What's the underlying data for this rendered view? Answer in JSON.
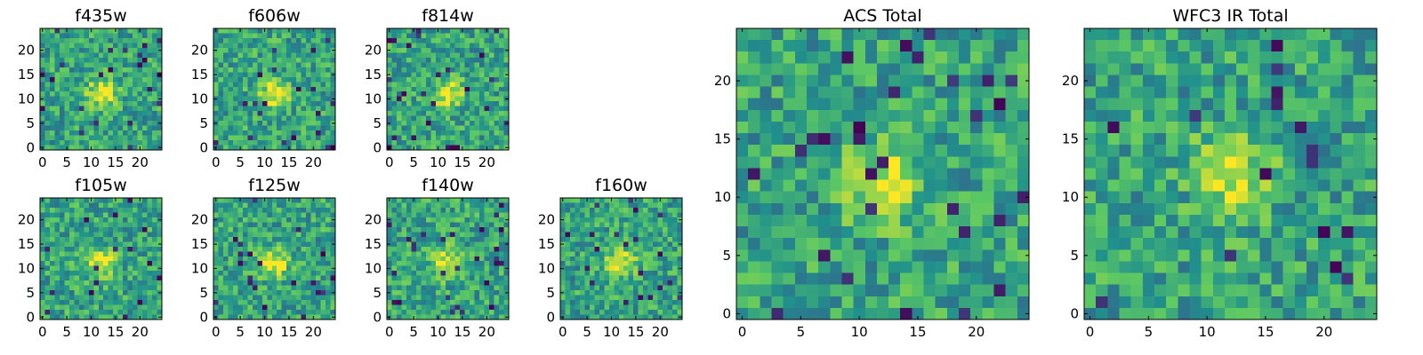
{
  "figure": {
    "colormap": "viridis",
    "colormap_stops": [
      "#440154",
      "#3b528b",
      "#21918c",
      "#5ec962",
      "#fde725"
    ]
  },
  "chart_data": [
    {
      "type": "heatmap",
      "title": "f435w",
      "grid": false,
      "pixels": 25,
      "xlim": [
        0,
        24
      ],
      "ylim": [
        0,
        24
      ],
      "xticks": [
        0,
        5,
        10,
        15,
        20
      ],
      "yticks": [
        0,
        5,
        10,
        15,
        20
      ],
      "source_peak": [
        12,
        11
      ]
    },
    {
      "type": "heatmap",
      "title": "f606w",
      "grid": false,
      "pixels": 25,
      "xlim": [
        0,
        24
      ],
      "ylim": [
        0,
        24
      ],
      "xticks": [
        0,
        5,
        10,
        15,
        20
      ],
      "yticks": [
        0,
        5,
        10,
        15,
        20
      ],
      "source_peak": [
        12,
        11
      ]
    },
    {
      "type": "heatmap",
      "title": "f814w",
      "grid": false,
      "pixels": 25,
      "xlim": [
        0,
        24
      ],
      "ylim": [
        0,
        24
      ],
      "xticks": [
        0,
        5,
        10,
        15,
        20
      ],
      "yticks": [
        0,
        5,
        10,
        15,
        20
      ],
      "source_peak": [
        12,
        11
      ]
    },
    {
      "type": "heatmap",
      "title": "f105w",
      "grid": false,
      "pixels": 25,
      "xlim": [
        0,
        24
      ],
      "ylim": [
        0,
        24
      ],
      "xticks": [
        0,
        5,
        10,
        15,
        20
      ],
      "yticks": [
        0,
        5,
        10,
        15,
        20
      ],
      "source_peak": [
        12,
        11
      ]
    },
    {
      "type": "heatmap",
      "title": "f125w",
      "grid": false,
      "pixels": 25,
      "xlim": [
        0,
        24
      ],
      "ylim": [
        0,
        24
      ],
      "xticks": [
        0,
        5,
        10,
        15,
        20
      ],
      "yticks": [
        0,
        5,
        10,
        15,
        20
      ],
      "source_peak": [
        12,
        11
      ]
    },
    {
      "type": "heatmap",
      "title": "f140w",
      "grid": false,
      "pixels": 25,
      "xlim": [
        0,
        24
      ],
      "ylim": [
        0,
        24
      ],
      "xticks": [
        0,
        5,
        10,
        15,
        20
      ],
      "yticks": [
        0,
        5,
        10,
        15,
        20
      ],
      "source_peak": [
        12,
        11
      ]
    },
    {
      "type": "heatmap",
      "title": "f160w",
      "grid": false,
      "pixels": 25,
      "xlim": [
        0,
        24
      ],
      "ylim": [
        0,
        24
      ],
      "xticks": [
        0,
        5,
        10,
        15,
        20
      ],
      "yticks": [
        0,
        5,
        10,
        15,
        20
      ],
      "source_peak": [
        12,
        11
      ]
    },
    {
      "type": "heatmap",
      "title": "ACS Total",
      "grid": false,
      "pixels": 25,
      "xlim": [
        0,
        24
      ],
      "ylim": [
        0,
        24
      ],
      "xticks": [
        0,
        5,
        10,
        15,
        20
      ],
      "yticks": [
        0,
        5,
        10,
        15,
        20
      ],
      "source_peak": [
        12,
        11
      ]
    },
    {
      "type": "heatmap",
      "title": "WFC3 IR Total",
      "grid": false,
      "pixels": 25,
      "xlim": [
        0,
        24
      ],
      "ylim": [
        0,
        24
      ],
      "xticks": [
        0,
        5,
        10,
        15,
        20
      ],
      "yticks": [
        0,
        5,
        10,
        15,
        20
      ],
      "source_peak": [
        12,
        12
      ]
    }
  ]
}
